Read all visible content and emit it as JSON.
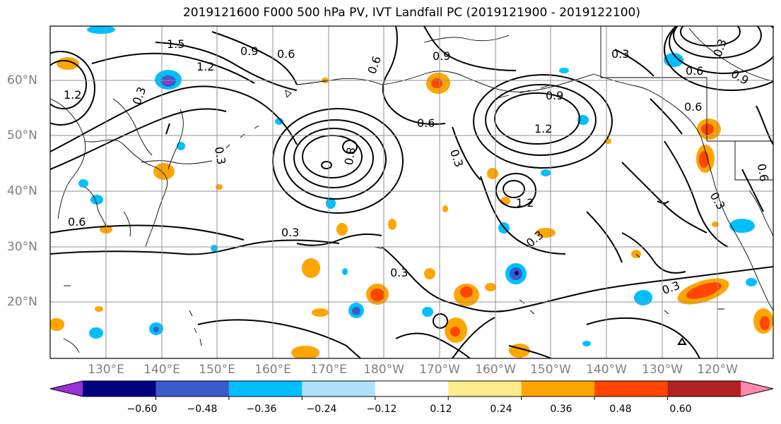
{
  "title": "2019121600 F000 500 hPa PV, IVT Landfall PC (2019121900 - 2019122100)",
  "lat_labels": [
    "60°N",
    "50°N",
    "40°N",
    "30°N",
    "20°N"
  ],
  "lon_labels": [
    "130°E",
    "140°E",
    "150°E",
    "160°E",
    "170°E",
    "180°W",
    "170°W",
    "160°W",
    "150°W",
    "140°W",
    "130°W",
    "120°W"
  ],
  "contour_labels": [
    "1.5",
    "1.2",
    "0.9",
    "0.6",
    "0.6",
    "1.2",
    "0.8",
    "0.3",
    "0.3",
    "0.6",
    "0.9",
    "1.2",
    "0.3",
    "1.2",
    "0.9",
    "0.6",
    "0.3",
    "0.3",
    "0.3",
    "0.3",
    "0.6",
    "0.3",
    "0.6",
    "0.9",
    "0.3",
    "0.3",
    "0.6"
  ],
  "colorbar": {
    "ticks": [
      "−0.60",
      "−0.48",
      "−0.36",
      "−0.24",
      "−0.12",
      "0.12",
      "0.24",
      "0.36",
      "0.48",
      "0.60"
    ],
    "colors": [
      "#9b30d9",
      "#000080",
      "#3b5bcc",
      "#00bfff",
      "#b0e2ff",
      "#ffffff",
      "#ffec8b",
      "#ffa500",
      "#ff4500",
      "#b22222",
      "#ff88b0"
    ]
  }
}
